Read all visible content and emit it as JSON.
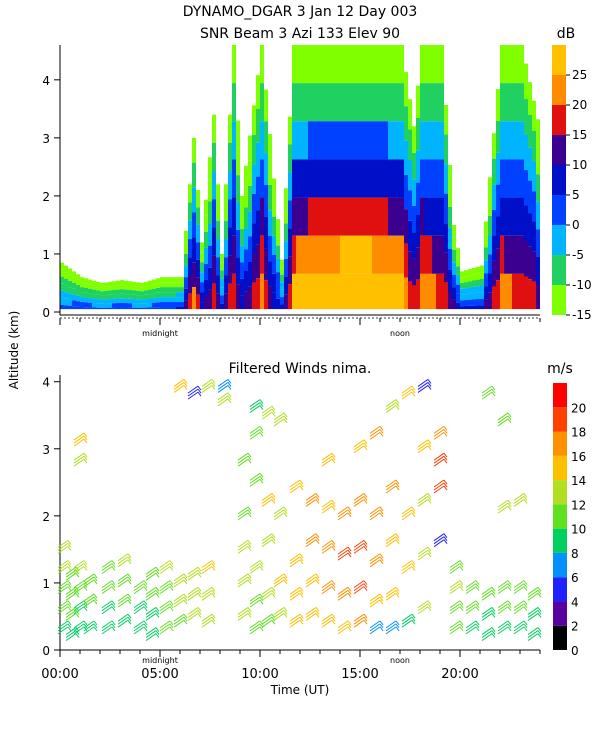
{
  "header": {
    "title_line1": "DYNAMO_DGAR    3 Jan 12 Day 003",
    "title_line2": "SNR Beam 3 Azi 133 Elev 90"
  },
  "shared": {
    "ylabel": "Altitude (km)",
    "xlabel": "Time (UT)",
    "midnight_label": "midnight",
    "noon_label": "noon",
    "x_tick_labels": [
      "00:00",
      "05:00",
      "10:00",
      "15:00",
      "20:00"
    ]
  },
  "colors": {
    "snr_scale": [
      "#80ff00",
      "#20d060",
      "#00b4ff",
      "#0040ff",
      "#0010c8",
      "#3c0090",
      "#e01010",
      "#ff8c00",
      "#ffc000"
    ],
    "wind_scale": [
      "#000000",
      "#5a00a0",
      "#2020ff",
      "#0090ff",
      "#00d060",
      "#60e020",
      "#b0e020",
      "#ffc000",
      "#ff9000",
      "#ff4000",
      "#ff0000"
    ]
  },
  "chart_data": [
    {
      "type": "heatmap",
      "title": "SNR Beam 3 Azi 133 Elev 90",
      "xlabel": "",
      "ylabel": "Altitude (km)",
      "xlim": [
        0,
        24
      ],
      "ylim": [
        0,
        4.6
      ],
      "y_ticks": [
        0,
        1,
        2,
        3,
        4
      ],
      "colorbar": {
        "label": "dB",
        "range": [
          -15,
          30
        ],
        "ticks": [
          25,
          20,
          15,
          10,
          5,
          0,
          -5,
          -10,
          -15
        ]
      },
      "columns": [
        {
          "t": 0.0,
          "top": 0.85,
          "peak": 0.0
        },
        {
          "t": 1.0,
          "top": 0.6,
          "peak": 0.05
        },
        {
          "t": 2.0,
          "top": 0.5,
          "peak": 0.0
        },
        {
          "t": 3.0,
          "top": 0.55,
          "peak": 0.05
        },
        {
          "t": 4.0,
          "top": 0.5,
          "peak": 0.0
        },
        {
          "t": 5.0,
          "top": 0.6,
          "peak": 0.05
        },
        {
          "t": 6.0,
          "top": 0.6,
          "peak": 0.1
        },
        {
          "t": 6.6,
          "top": 3.0,
          "peak": 0.55
        },
        {
          "t": 7.0,
          "top": 1.2,
          "peak": 0.2
        },
        {
          "t": 7.6,
          "top": 3.4,
          "peak": 0.4
        },
        {
          "t": 8.0,
          "top": 1.0,
          "peak": 0.15
        },
        {
          "t": 8.6,
          "top": 4.6,
          "peak": 0.5
        },
        {
          "t": 9.0,
          "top": 2.0,
          "peak": 0.2
        },
        {
          "t": 10.0,
          "top": 4.6,
          "peak": 0.6
        },
        {
          "t": 10.6,
          "top": 2.3,
          "peak": 0.2
        },
        {
          "t": 11.0,
          "top": 0.9,
          "peak": 0.15
        },
        {
          "t": 11.6,
          "top": 4.6,
          "peak": 0.7
        },
        {
          "t": 12.0,
          "top": 4.6,
          "peak": 0.8
        },
        {
          "t": 13.0,
          "top": 4.6,
          "peak": 0.85
        },
        {
          "t": 14.0,
          "top": 4.6,
          "peak": 0.9
        },
        {
          "t": 15.0,
          "top": 4.6,
          "peak": 0.95
        },
        {
          "t": 16.0,
          "top": 4.6,
          "peak": 0.85
        },
        {
          "t": 17.0,
          "top": 4.6,
          "peak": 0.75
        },
        {
          "t": 17.6,
          "top": 3.2,
          "peak": 0.4
        },
        {
          "t": 18.0,
          "top": 4.6,
          "peak": 0.6
        },
        {
          "t": 19.0,
          "top": 4.6,
          "peak": 0.5
        },
        {
          "t": 19.6,
          "top": 1.5,
          "peak": 0.25
        },
        {
          "t": 20.0,
          "top": 0.7,
          "peak": 0.1
        },
        {
          "t": 21.0,
          "top": 0.8,
          "peak": 0.15
        },
        {
          "t": 22.0,
          "top": 4.6,
          "peak": 0.55
        },
        {
          "t": 23.0,
          "top": 4.6,
          "peak": 0.5
        },
        {
          "t": 24.0,
          "top": 3.0,
          "peak": 0.3
        }
      ]
    },
    {
      "type": "scatter",
      "title": "Filtered Winds nima.",
      "xlabel": "Time (UT)",
      "ylabel": "Altitude (km)",
      "xlim": [
        0,
        24
      ],
      "ylim": [
        0,
        4.1
      ],
      "y_ticks": [
        0,
        1,
        2,
        3,
        4
      ],
      "colorbar": {
        "label": "m/s",
        "range": [
          0,
          22
        ],
        "ticks": [
          20,
          18,
          16,
          14,
          12,
          10,
          8,
          6,
          4,
          2,
          0
        ]
      },
      "barb_columns": [
        {
          "t": 0.2,
          "levels": [
            [
              0.3,
              8
            ],
            [
              0.6,
              10
            ],
            [
              0.9,
              11
            ],
            [
              1.2,
              12
            ],
            [
              1.5,
              13
            ]
          ]
        },
        {
          "t": 0.6,
          "levels": [
            [
              0.2,
              9
            ],
            [
              0.5,
              10
            ],
            [
              0.8,
              11
            ],
            [
              1.1,
              11
            ]
          ]
        },
        {
          "t": 1.0,
          "levels": [
            [
              0.3,
              8
            ],
            [
              0.6,
              9
            ],
            [
              0.9,
              10
            ],
            [
              1.2,
              12
            ],
            [
              2.8,
              13
            ],
            [
              3.1,
              14
            ]
          ]
        },
        {
          "t": 1.5,
          "levels": [
            [
              0.3,
              9
            ],
            [
              0.7,
              10
            ],
            [
              1.0,
              11
            ]
          ]
        },
        {
          "t": 2.4,
          "levels": [
            [
              0.3,
              8
            ],
            [
              0.6,
              9
            ],
            [
              0.9,
              10
            ],
            [
              1.2,
              11
            ]
          ]
        },
        {
          "t": 3.2,
          "levels": [
            [
              0.4,
              9
            ],
            [
              0.7,
              10
            ],
            [
              1.0,
              11
            ],
            [
              1.3,
              12
            ]
          ]
        },
        {
          "t": 4.0,
          "levels": [
            [
              0.3,
              8
            ],
            [
              0.6,
              9
            ],
            [
              0.9,
              11
            ]
          ]
        },
        {
          "t": 4.6,
          "levels": [
            [
              0.2,
              8
            ],
            [
              0.5,
              9
            ],
            [
              0.8,
              10
            ],
            [
              1.1,
              10
            ]
          ]
        },
        {
          "t": 5.3,
          "levels": [
            [
              0.3,
              10
            ],
            [
              0.6,
              11
            ],
            [
              0.9,
              11
            ],
            [
              1.2,
              12
            ]
          ]
        },
        {
          "t": 6.0,
          "levels": [
            [
              0.4,
              11
            ],
            [
              0.7,
              12
            ],
            [
              1.0,
              12
            ],
            [
              3.9,
              14
            ]
          ]
        },
        {
          "t": 6.7,
          "levels": [
            [
              0.5,
              12
            ],
            [
              0.8,
              13
            ],
            [
              1.1,
              13
            ],
            [
              3.8,
              4
            ]
          ]
        },
        {
          "t": 7.4,
          "levels": [
            [
              0.4,
              13
            ],
            [
              0.8,
              13
            ],
            [
              1.2,
              14
            ],
            [
              3.9,
              13
            ]
          ]
        },
        {
          "t": 8.2,
          "levels": [
            [
              3.7,
              12
            ],
            [
              3.9,
              6
            ]
          ]
        },
        {
          "t": 9.2,
          "levels": [
            [
              0.5,
              12
            ],
            [
              1.0,
              13
            ],
            [
              1.5,
              12
            ],
            [
              2.0,
              11
            ],
            [
              2.8,
              10
            ]
          ]
        },
        {
          "t": 9.8,
          "levels": [
            [
              0.3,
              10
            ],
            [
              0.7,
              11
            ],
            [
              1.2,
              12
            ],
            [
              2.5,
              11
            ],
            [
              3.2,
              10
            ],
            [
              3.6,
              9
            ]
          ]
        },
        {
          "t": 10.4,
          "levels": [
            [
              0.4,
              11
            ],
            [
              0.8,
              12
            ],
            [
              1.6,
              13
            ],
            [
              2.2,
              14
            ],
            [
              3.5,
              12
            ]
          ]
        },
        {
          "t": 11.0,
          "levels": [
            [
              0.5,
              13
            ],
            [
              1.0,
              14
            ],
            [
              2.0,
              13
            ],
            [
              3.4,
              13
            ]
          ]
        },
        {
          "t": 11.8,
          "levels": [
            [
              0.4,
              14
            ],
            [
              0.8,
              15
            ],
            [
              1.3,
              15
            ],
            [
              2.4,
              15
            ]
          ]
        },
        {
          "t": 12.6,
          "levels": [
            [
              0.5,
              14
            ],
            [
              1.0,
              15
            ],
            [
              1.6,
              16
            ],
            [
              2.2,
              16
            ]
          ]
        },
        {
          "t": 13.4,
          "levels": [
            [
              0.4,
              15
            ],
            [
              0.9,
              16
            ],
            [
              1.5,
              16
            ],
            [
              2.1,
              15
            ],
            [
              2.8,
              14
            ]
          ]
        },
        {
          "t": 14.2,
          "levels": [
            [
              0.3,
              15
            ],
            [
              0.8,
              17
            ],
            [
              1.4,
              18
            ],
            [
              2.0,
              17
            ]
          ]
        },
        {
          "t": 15.0,
          "levels": [
            [
              0.4,
              16
            ],
            [
              0.9,
              18
            ],
            [
              1.5,
              19
            ],
            [
              2.2,
              17
            ],
            [
              3.0,
              15
            ]
          ]
        },
        {
          "t": 15.8,
          "levels": [
            [
              0.3,
              6
            ],
            [
              0.7,
              15
            ],
            [
              1.3,
              17
            ],
            [
              2.0,
              16
            ],
            [
              3.2,
              17
            ]
          ]
        },
        {
          "t": 16.6,
          "levels": [
            [
              0.3,
              7
            ],
            [
              0.8,
              14
            ],
            [
              1.6,
              15
            ],
            [
              2.4,
              16
            ],
            [
              3.6,
              13
            ]
          ]
        },
        {
          "t": 17.4,
          "levels": [
            [
              0.4,
              8
            ],
            [
              1.2,
              14
            ],
            [
              2.0,
              15
            ],
            [
              3.8,
              14
            ]
          ]
        },
        {
          "t": 18.2,
          "levels": [
            [
              0.6,
              12
            ],
            [
              1.4,
              13
            ],
            [
              2.2,
              13
            ],
            [
              3.0,
              14
            ],
            [
              3.9,
              4
            ]
          ]
        },
        {
          "t": 19.0,
          "levels": [
            [
              1.6,
              4
            ],
            [
              2.4,
              18
            ],
            [
              2.8,
              19
            ],
            [
              3.2,
              16
            ]
          ]
        },
        {
          "t": 19.8,
          "levels": [
            [
              0.3,
              10
            ],
            [
              0.6,
              11
            ],
            [
              0.9,
              12
            ],
            [
              1.2,
              11
            ]
          ]
        },
        {
          "t": 20.6,
          "levels": [
            [
              0.3,
              9
            ],
            [
              0.6,
              10
            ],
            [
              0.9,
              11
            ]
          ]
        },
        {
          "t": 21.4,
          "levels": [
            [
              0.2,
              8
            ],
            [
              0.5,
              9
            ],
            [
              0.8,
              10
            ],
            [
              3.8,
              11
            ]
          ]
        },
        {
          "t": 22.2,
          "levels": [
            [
              0.3,
              9
            ],
            [
              0.6,
              10
            ],
            [
              0.9,
              10
            ],
            [
              2.1,
              13
            ],
            [
              3.4,
              11
            ]
          ]
        },
        {
          "t": 23.0,
          "levels": [
            [
              0.3,
              9
            ],
            [
              0.6,
              10
            ],
            [
              0.9,
              11
            ],
            [
              2.2,
              12
            ]
          ]
        },
        {
          "t": 23.7,
          "levels": [
            [
              0.2,
              8
            ],
            [
              0.5,
              9
            ],
            [
              0.8,
              10
            ]
          ]
        }
      ]
    }
  ]
}
